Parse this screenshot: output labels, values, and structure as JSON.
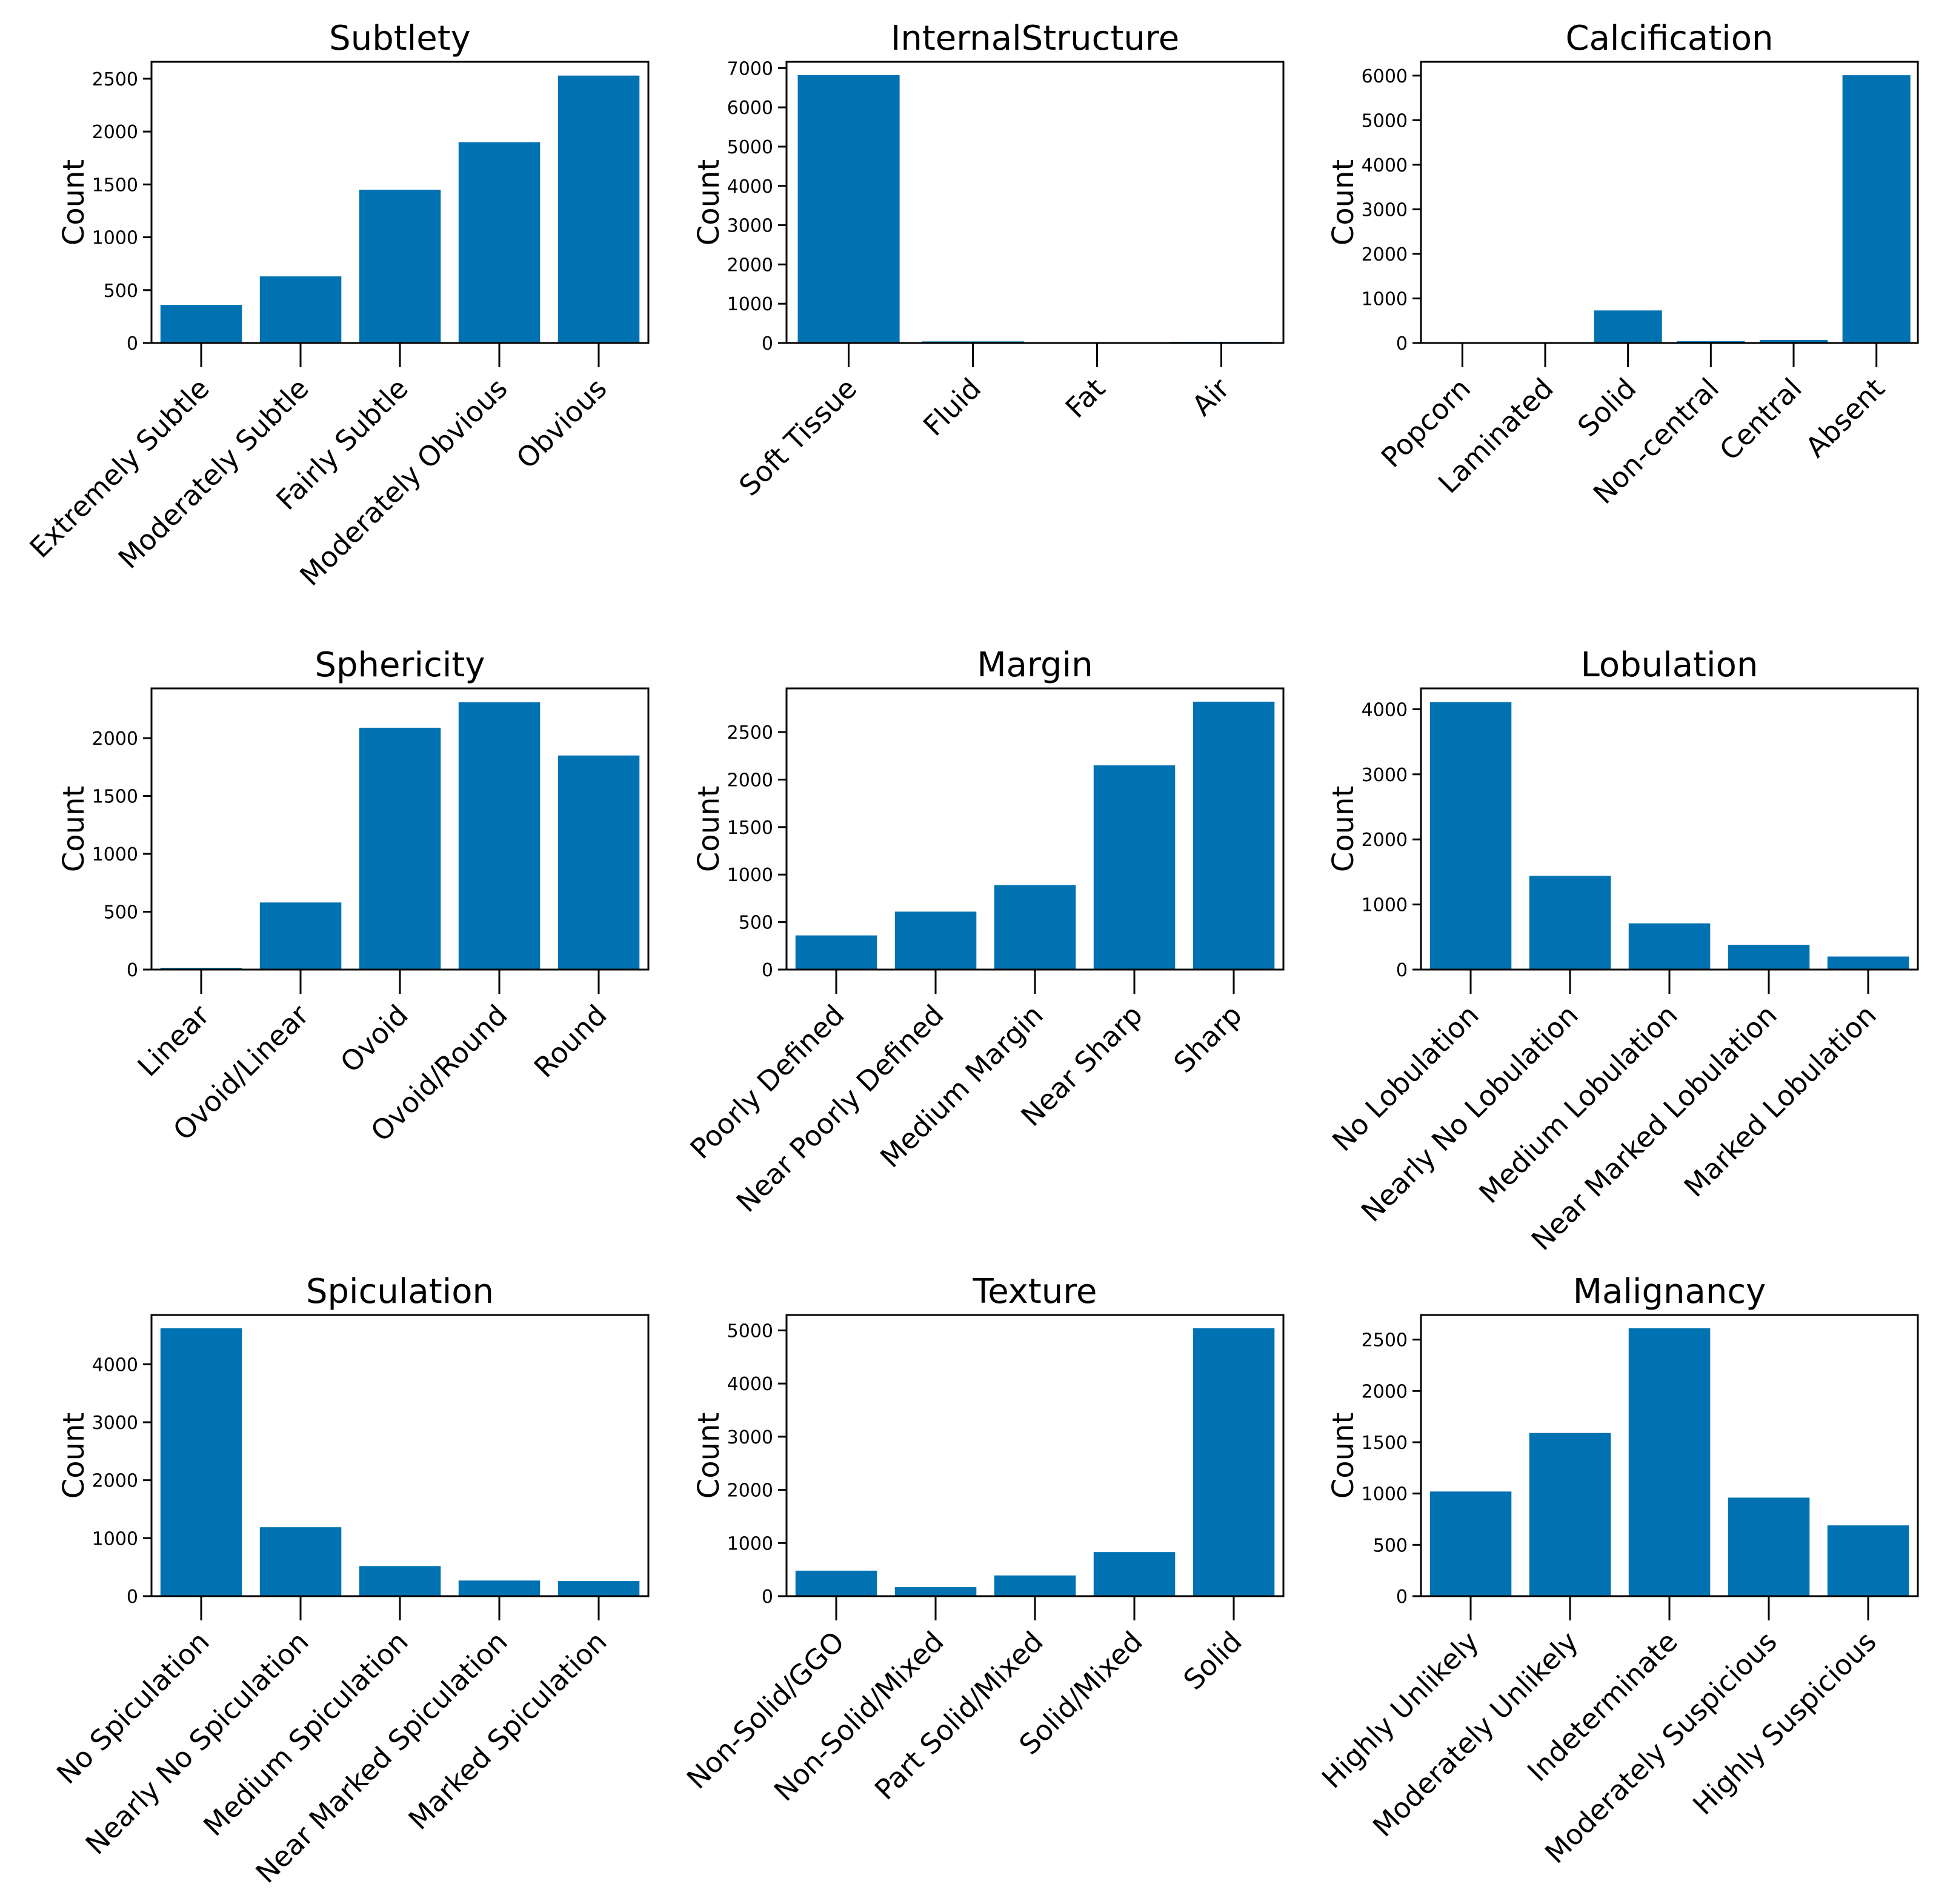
{
  "figure": {
    "bar_color": "#0072b2",
    "axis_color": "#000000"
  },
  "chart_data": [
    {
      "type": "bar",
      "title": "Subtlety",
      "ylabel": "Count",
      "xlabel": "",
      "categories": [
        "Extremely Subtle",
        "Moderately Subtle",
        "Fairly Subtle",
        "Moderately Obvious",
        "Obvious"
      ],
      "values": [
        360,
        630,
        1450,
        1900,
        2530
      ],
      "yticks": [
        0,
        500,
        1000,
        1500,
        2000,
        2500
      ],
      "ylim": [
        0,
        2660
      ]
    },
    {
      "type": "bar",
      "title": "InternalStructure",
      "ylabel": "Count",
      "xlabel": "",
      "categories": [
        "Soft Tissue",
        "Fluid",
        "Fat",
        "Air"
      ],
      "values": [
        6820,
        40,
        5,
        30
      ],
      "yticks": [
        0,
        1000,
        2000,
        3000,
        4000,
        5000,
        6000,
        7000
      ],
      "ylim": [
        0,
        7160
      ]
    },
    {
      "type": "bar",
      "title": "Calcification",
      "ylabel": "Count",
      "xlabel": "",
      "categories": [
        "Popcorn",
        "Laminated",
        "Solid",
        "Non-central",
        "Central",
        "Absent"
      ],
      "values": [
        5,
        20,
        730,
        40,
        70,
        6010
      ],
      "yticks": [
        0,
        1000,
        2000,
        3000,
        4000,
        5000,
        6000
      ],
      "ylim": [
        0,
        6310
      ]
    },
    {
      "type": "bar",
      "title": "Sphericity",
      "ylabel": "Count",
      "xlabel": "",
      "categories": [
        "Linear",
        "Ovoid/Linear",
        "Ovoid",
        "Ovoid/Round",
        "Round"
      ],
      "values": [
        15,
        580,
        2090,
        2310,
        1850
      ],
      "yticks": [
        0,
        500,
        1000,
        1500,
        2000
      ],
      "ylim": [
        0,
        2430
      ]
    },
    {
      "type": "bar",
      "title": "Margin",
      "ylabel": "Count",
      "xlabel": "",
      "categories": [
        "Poorly Defined",
        "Near Poorly Defined",
        "Medium Margin",
        "Near Sharp",
        "Sharp"
      ],
      "values": [
        360,
        610,
        890,
        2150,
        2820
      ],
      "yticks": [
        0,
        500,
        1000,
        1500,
        2000,
        2500
      ],
      "ylim": [
        0,
        2960
      ]
    },
    {
      "type": "bar",
      "title": "Lobulation",
      "ylabel": "Count",
      "xlabel": "",
      "categories": [
        "No Lobulation",
        "Nearly No Lobulation",
        "Medium Lobulation",
        "Near Marked Lobulation",
        "Marked Lobulation"
      ],
      "values": [
        4110,
        1440,
        710,
        380,
        200
      ],
      "yticks": [
        0,
        1000,
        2000,
        3000,
        4000
      ],
      "ylim": [
        0,
        4320
      ]
    },
    {
      "type": "bar",
      "title": "Spiculation",
      "ylabel": "Count",
      "xlabel": "",
      "categories": [
        "No Spiculation",
        "Nearly No Spiculation",
        "Medium Spiculation",
        "Near Marked Spiculation",
        "Marked Spiculation"
      ],
      "values": [
        4620,
        1190,
        520,
        270,
        260
      ],
      "yticks": [
        0,
        1000,
        2000,
        3000,
        4000
      ],
      "ylim": [
        0,
        4850
      ]
    },
    {
      "type": "bar",
      "title": "Texture",
      "ylabel": "Count",
      "xlabel": "",
      "categories": [
        "Non-Solid/GGO",
        "Non-Solid/Mixed",
        "Part Solid/Mixed",
        "Solid/Mixed",
        "Solid"
      ],
      "values": [
        480,
        170,
        390,
        830,
        5040
      ],
      "yticks": [
        0,
        1000,
        2000,
        3000,
        4000,
        5000
      ],
      "ylim": [
        0,
        5290
      ]
    },
    {
      "type": "bar",
      "title": "Malignancy",
      "ylabel": "Count",
      "xlabel": "",
      "categories": [
        "Highly Unlikely",
        "Moderately Unlikely",
        "Indeterminate",
        "Moderately Suspicious",
        "Highly Suspicious"
      ],
      "values": [
        1020,
        1590,
        2610,
        960,
        690
      ],
      "yticks": [
        0,
        500,
        1000,
        1500,
        2000,
        2500
      ],
      "ylim": [
        0,
        2740
      ]
    }
  ]
}
